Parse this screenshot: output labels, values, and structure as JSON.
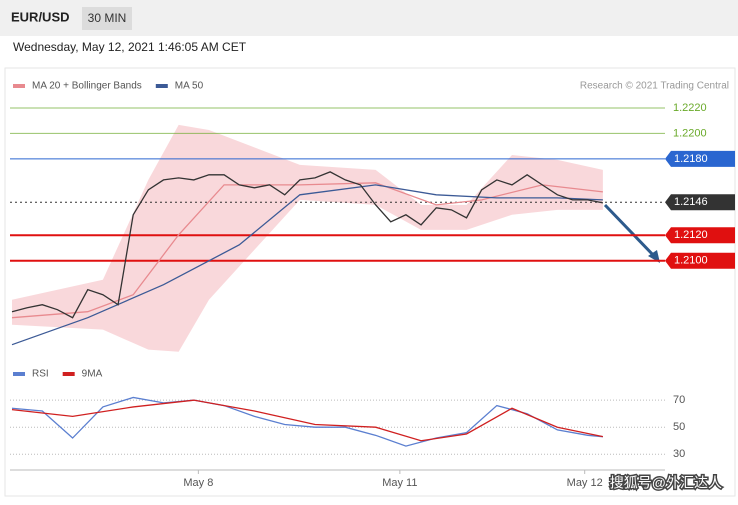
{
  "header": {
    "symbol": "EUR/USD",
    "timeframe": "30 MIN",
    "timestamp": "Wednesday, May 12, 2021 1:46:05 AM CET",
    "credit": "Research © 2021 Trading Central",
    "watermark": "搜狐号@外汇达人"
  },
  "chart_data": [
    {
      "type": "line",
      "xlim": [
        0,
        43.1
      ],
      "ylim": [
        1.2026,
        1.2229
      ],
      "bands": {
        "name": "MA 20 + Bollinger Bands",
        "color": "#f7c8cc",
        "x": [
          0,
          6,
          9,
          11,
          13,
          19,
          24,
          27,
          30,
          33,
          36,
          39
        ],
        "upper": [
          1.20694,
          1.20851,
          1.21635,
          1.22067,
          1.22027,
          1.21753,
          1.21714,
          1.21439,
          1.21439,
          1.21831,
          1.21792,
          1.21714
        ],
        "lower": [
          1.20498,
          1.20459,
          1.20302,
          1.20286,
          1.20694,
          1.21478,
          1.21439,
          1.21243,
          1.21243,
          1.21361,
          1.214,
          1.214
        ]
      },
      "series": [
        {
          "name": "MA 20 + Bollinger Bands",
          "color": "#e88a8f",
          "x": [
            0,
            5,
            8,
            11,
            14,
            19,
            24,
            28,
            31,
            35,
            39
          ],
          "values": [
            1.20553,
            1.206,
            1.20733,
            1.21204,
            1.21596,
            1.21596,
            1.21612,
            1.21439,
            1.21478,
            1.21596,
            1.21541
          ]
        },
        {
          "name": "MA 50",
          "color": "#3c5a96",
          "x": [
            0,
            5,
            10,
            15,
            19,
            24,
            28,
            32,
            36,
            39
          ],
          "values": [
            1.20341,
            1.20553,
            1.20812,
            1.21125,
            1.21518,
            1.21596,
            1.21518,
            1.21494,
            1.21494,
            1.21478
          ]
        },
        {
          "color": "#333333",
          "x": [
            0,
            1,
            2,
            3,
            4,
            5,
            6,
            7,
            8,
            9,
            10,
            11,
            12,
            13,
            14,
            15,
            16,
            17,
            18,
            19,
            20,
            21,
            22,
            23,
            24,
            25,
            26,
            27,
            28,
            29,
            30,
            31,
            32,
            33,
            34,
            35,
            36,
            37,
            38,
            39
          ],
          "values": [
            1.206,
            1.20631,
            1.20655,
            1.20616,
            1.20553,
            1.20773,
            1.20733,
            1.20655,
            1.21361,
            1.21557,
            1.21635,
            1.21651,
            1.21635,
            1.21675,
            1.21675,
            1.21596,
            1.21573,
            1.21596,
            1.21518,
            1.21635,
            1.21651,
            1.21698,
            1.21635,
            1.21596,
            1.21439,
            1.21306,
            1.21361,
            1.21282,
            1.21416,
            1.214,
            1.21337,
            1.21557,
            1.21635,
            1.21596,
            1.21675,
            1.21596,
            1.21518,
            1.21478,
            1.21478,
            1.21455
          ]
        }
      ],
      "levels": [
        {
          "value": 1.222,
          "label": "1.2220",
          "color": "#6aaa2a"
        },
        {
          "value": 1.22,
          "label": "1.2200",
          "color": "#6aaa2a"
        },
        {
          "value": 1.218,
          "label": "1.2180",
          "color": "#2a66d0"
        },
        {
          "value": 1.2146,
          "label": "1.2146",
          "color": "#333333"
        },
        {
          "value": 1.212,
          "label": "1.2120",
          "color": "#e01010"
        },
        {
          "value": 1.21,
          "label": "1.2100",
          "color": "#e01010"
        }
      ]
    },
    {
      "type": "line",
      "xlim": [
        0,
        43.1
      ],
      "ylim": [
        25,
        79
      ],
      "yticks": [
        70,
        50,
        30
      ],
      "xticks": [
        {
          "value": 12.3,
          "label": "May 8"
        },
        {
          "value": 25.6,
          "label": "May 11"
        },
        {
          "value": 37.8,
          "label": "May 12"
        }
      ],
      "series": [
        {
          "name": "RSI",
          "color": "#5b7fd0",
          "x": [
            0,
            2,
            4,
            6,
            8,
            10,
            12,
            14,
            16,
            18,
            20,
            22,
            24,
            26,
            28,
            30,
            32,
            34,
            36,
            38,
            39
          ],
          "values": [
            64,
            62,
            42,
            65,
            72,
            68,
            70,
            66,
            58,
            52,
            50,
            50,
            44,
            36,
            42,
            46,
            66,
            60,
            48,
            44,
            43
          ]
        },
        {
          "name": "9MA",
          "color": "#d02020",
          "x": [
            0,
            4,
            8,
            12,
            16,
            20,
            24,
            27,
            30,
            33,
            36,
            39
          ],
          "values": [
            63,
            58,
            65,
            70,
            62,
            52,
            50,
            40,
            45,
            64,
            50,
            43
          ]
        }
      ]
    }
  ]
}
